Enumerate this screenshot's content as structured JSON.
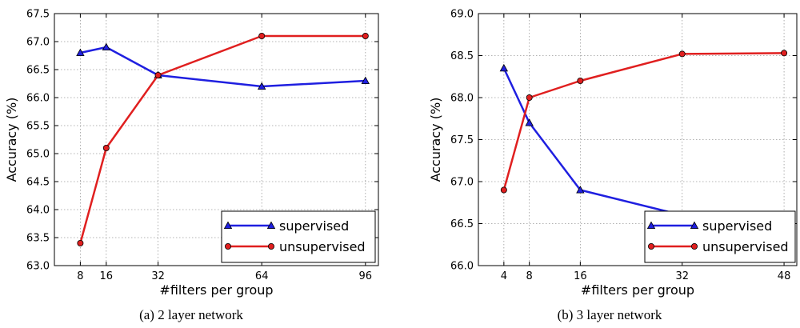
{
  "chart_data": [
    {
      "type": "line",
      "caption": "(a) 2 layer network",
      "xlabel": "#filters per group",
      "ylabel": "Accuracy (%)",
      "xlim": [
        0,
        100
      ],
      "ylim": [
        63.0,
        67.5
      ],
      "xticks": [
        8,
        16,
        32,
        64,
        96
      ],
      "yticks": [
        63.0,
        63.5,
        64.0,
        64.5,
        65.0,
        65.5,
        66.0,
        66.5,
        67.0,
        67.5
      ],
      "grid": true,
      "legend": "lower-right",
      "x": [
        8,
        16,
        32,
        64,
        96
      ],
      "series": [
        {
          "name": "supervised",
          "marker": "triangle",
          "color": "#1f1fe0",
          "values": [
            66.8,
            66.9,
            66.4,
            66.2,
            66.3
          ]
        },
        {
          "name": "unsupervised",
          "marker": "circle",
          "color": "#e01f1f",
          "values": [
            63.4,
            65.1,
            66.4,
            67.1,
            67.1
          ]
        }
      ]
    },
    {
      "type": "line",
      "caption": "(b) 3 layer network",
      "xlabel": "#filters per group",
      "ylabel": "Accuracy (%)",
      "xlim": [
        0,
        50
      ],
      "ylim": [
        66.0,
        69.0
      ],
      "xticks": [
        4,
        8,
        16,
        32,
        48
      ],
      "yticks": [
        66.0,
        66.5,
        67.0,
        67.5,
        68.0,
        68.5,
        69.0
      ],
      "grid": true,
      "legend": "lower-right",
      "x": [
        4,
        8,
        16,
        32,
        48
      ],
      "series": [
        {
          "name": "supervised",
          "marker": "triangle",
          "color": "#1f1fe0",
          "values": [
            68.35,
            67.7,
            66.9,
            66.6,
            66.55
          ]
        },
        {
          "name": "unsupervised",
          "marker": "circle",
          "color": "#e01f1f",
          "values": [
            66.9,
            68.0,
            68.2,
            68.52,
            68.53
          ]
        }
      ]
    }
  ]
}
